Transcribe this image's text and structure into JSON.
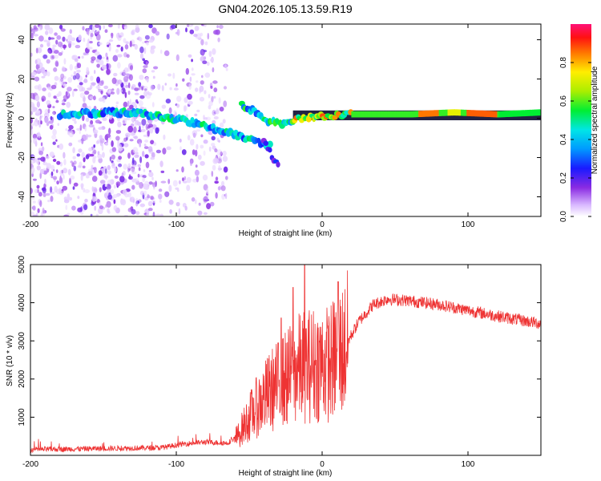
{
  "page": {
    "title": "GN04.2026.105.13.59.R19"
  },
  "chart_data": [
    {
      "type": "heatmap",
      "id": "spectrogram",
      "title": "GN04.2026.105.13.59.R19",
      "xlabel": "Height of straight line (km)",
      "ylabel": "Frequency (Hz)",
      "xlim": [
        -200,
        150
      ],
      "ylim": [
        -50,
        48
      ],
      "xticks": [
        -200,
        -100,
        0,
        100
      ],
      "yticks": [
        -40,
        -20,
        0,
        20,
        40
      ],
      "colorbar": {
        "label": "Normalized spectral amplitude",
        "range": [
          0,
          1
        ],
        "ticks": [
          0.0,
          0.2,
          0.4,
          0.6,
          0.8
        ]
      },
      "colorbar_tick_labels": [
        "0.0",
        "0.2",
        "0.4",
        "0.6",
        "0.8"
      ],
      "features": {
        "noise_region_x": [
          -200,
          -65
        ],
        "main_trace": [
          {
            "x": -180,
            "y": 2
          },
          {
            "x": -150,
            "y": 3
          },
          {
            "x": -130,
            "y": 3
          },
          {
            "x": -110,
            "y": 1
          },
          {
            "x": -90,
            "y": -2
          },
          {
            "x": -75,
            "y": -5
          },
          {
            "x": -60,
            "y": -8
          },
          {
            "x": -45,
            "y": -12
          },
          {
            "x": -35,
            "y": -14
          }
        ],
        "upper_trace": [
          {
            "x": -55,
            "y": 7
          },
          {
            "x": -45,
            "y": 3
          },
          {
            "x": -35,
            "y": -2
          },
          {
            "x": -25,
            "y": -3
          },
          {
            "x": -15,
            "y": 0
          },
          {
            "x": 0,
            "y": 1
          },
          {
            "x": 20,
            "y": 2
          },
          {
            "x": 60,
            "y": 2
          },
          {
            "x": 90,
            "y": 3
          },
          {
            "x": 120,
            "y": 2
          },
          {
            "x": 150,
            "y": 3
          }
        ],
        "side_lobe": [
          {
            "x": -40,
            "y": -12
          },
          {
            "x": -35,
            "y": -18
          },
          {
            "x": -30,
            "y": -25
          }
        ]
      }
    },
    {
      "type": "line",
      "id": "snr",
      "xlabel": "Height of straight line (km)",
      "ylabel": "SNR (10 * v/v)",
      "xlim": [
        -200,
        150
      ],
      "ylim": [
        0,
        5000
      ],
      "xticks": [
        -200,
        -100,
        0,
        100
      ],
      "yticks": [
        1000,
        2000,
        3000,
        4000,
        5000
      ],
      "series": [
        {
          "name": "SNR",
          "color": "#ee3333",
          "envelope": [
            {
              "x": -200,
              "y": 150
            },
            {
              "x": -150,
              "y": 180
            },
            {
              "x": -110,
              "y": 200
            },
            {
              "x": -95,
              "y": 300
            },
            {
              "x": -80,
              "y": 350
            },
            {
              "x": -65,
              "y": 320
            },
            {
              "x": -58,
              "y": 500
            },
            {
              "x": -50,
              "y": 1000
            },
            {
              "x": -42,
              "y": 1400
            },
            {
              "x": -35,
              "y": 1700
            },
            {
              "x": -25,
              "y": 2000
            },
            {
              "x": -15,
              "y": 2300
            },
            {
              "x": -5,
              "y": 2400
            },
            {
              "x": 5,
              "y": 2400
            },
            {
              "x": 15,
              "y": 2800
            },
            {
              "x": 25,
              "y": 3500
            },
            {
              "x": 35,
              "y": 3950
            },
            {
              "x": 45,
              "y": 4100
            },
            {
              "x": 60,
              "y": 4050
            },
            {
              "x": 80,
              "y": 3950
            },
            {
              "x": 100,
              "y": 3800
            },
            {
              "x": 120,
              "y": 3650
            },
            {
              "x": 150,
              "y": 3450
            }
          ],
          "spikes": [
            {
              "x": -12,
              "y": 5100
            },
            {
              "x": 11,
              "y": 4550
            },
            {
              "x": -20,
              "y": 4400
            },
            {
              "x": -28,
              "y": 3600
            }
          ]
        }
      ]
    }
  ],
  "colors": {
    "snr_line": "#ee3333",
    "axis": "#000000",
    "background": "#ffffff"
  }
}
